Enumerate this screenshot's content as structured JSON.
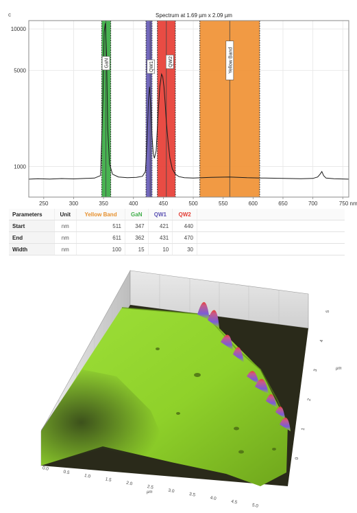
{
  "chart_data": [
    {
      "type": "line",
      "title": "Spectrum at 1.69 µm x 2.09 µm",
      "corner_label": "c",
      "xlabel": "",
      "ylabel": "",
      "x_unit": "nm",
      "xlim": [
        225,
        760
      ],
      "ylim": [
        600,
        11500
      ],
      "y_scale": "log",
      "x_ticks": [
        250,
        300,
        350,
        400,
        450,
        500,
        550,
        600,
        650,
        700,
        750
      ],
      "x_tick_labels": [
        "250",
        "300",
        "350",
        "400",
        "450",
        "500",
        "550",
        "600",
        "650",
        "700",
        "750 nm"
      ],
      "y_ticks": [
        1000,
        5000,
        10000
      ],
      "y_tick_labels": [
        "1000",
        "5000",
        "10000"
      ],
      "grid": true,
      "bands": [
        {
          "name": "GaN",
          "start": 347,
          "end": 362,
          "center": 354,
          "color": "#3fae49"
        },
        {
          "name": "QW1",
          "start": 421,
          "end": 431,
          "center": 428,
          "color": "#6a60b8"
        },
        {
          "name": "QW2",
          "start": 440,
          "end": 470,
          "center": 455,
          "color": "#e8423a"
        },
        {
          "name": "Yellow Band",
          "start": 511,
          "end": 611,
          "center": 561,
          "color": "#f0953a"
        }
      ],
      "series": [
        {
          "x": [
            225,
            240,
            260,
            280,
            300,
            320,
            335,
            345,
            349,
            351,
            353,
            355,
            357,
            360,
            365,
            375,
            390,
            405,
            415,
            420,
            423,
            425,
            427,
            429,
            431,
            433,
            435,
            438,
            441,
            444,
            447,
            449,
            451,
            453,
            455,
            458,
            461,
            465,
            470,
            476,
            485,
            500,
            530,
            560,
            590,
            620,
            650,
            680,
            700,
            708,
            712,
            715,
            718,
            722,
            735,
            760
          ],
          "y": [
            810,
            815,
            812,
            818,
            814,
            820,
            825,
            860,
            3000,
            9500,
            11000,
            6500,
            1900,
            1050,
            880,
            840,
            830,
            835,
            850,
            920,
            1600,
            3000,
            3800,
            2800,
            1700,
            1250,
            1150,
            1300,
            2300,
            3800,
            4700,
            4500,
            3800,
            2900,
            2100,
            1500,
            1150,
            960,
            880,
            845,
            830,
            825,
            835,
            840,
            830,
            825,
            820,
            815,
            820,
            840,
            880,
            920,
            860,
            825,
            815,
            810
          ]
        }
      ]
    },
    {
      "type": "heatmap",
      "title": "",
      "xlabel": "µm",
      "ylabel": "µm",
      "x_ticks": [
        "0.0",
        "0.5",
        "1.0",
        "1.5",
        "2.0",
        "2.5",
        "3.0",
        "3.5",
        "4.0",
        "4.5",
        "5.0"
      ],
      "y_ticks": [
        "0",
        "1",
        "2",
        "3",
        "4",
        "5"
      ],
      "colors": {
        "high": "#e8423a",
        "mid": "#7b5cd6",
        "base": "#8fd12a",
        "floor": "#2a2a1a"
      }
    }
  ],
  "parameters_table": {
    "headers": [
      "Parameters",
      "Unit",
      "Yellow Band",
      "GaN",
      "QW1",
      "QW2"
    ],
    "header_colors": [
      "#222222",
      "#222222",
      "#e6902e",
      "#3fae49",
      "#5b52b3",
      "#e23b33"
    ],
    "rows": [
      {
        "label": "Start",
        "unit": "nm",
        "values": [
          "511",
          "347",
          "421",
          "440"
        ]
      },
      {
        "label": "End",
        "unit": "nm",
        "values": [
          "611",
          "362",
          "431",
          "470"
        ]
      },
      {
        "label": "Width",
        "unit": "nm",
        "values": [
          "100",
          "15",
          "10",
          "30"
        ]
      }
    ]
  }
}
